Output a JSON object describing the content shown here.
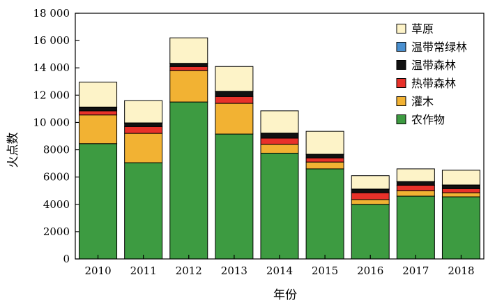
{
  "chart_data": {
    "type": "bar",
    "stacked": true,
    "categories": [
      "2010",
      "2011",
      "2012",
      "2013",
      "2014",
      "2015",
      "2016",
      "2017",
      "2018"
    ],
    "xlabel": "年份",
    "ylabel": "火点数",
    "ylim": [
      0,
      18000
    ],
    "yticks": [
      0,
      2000,
      4000,
      6000,
      8000,
      10000,
      12000,
      14000,
      16000,
      18000
    ],
    "ytick_labels": [
      "0",
      "2000",
      "4000",
      "6000",
      "8000",
      "10 000",
      "12 000",
      "14 000",
      "16 000",
      "18 000"
    ],
    "grid": false,
    "legend_position": "top-right",
    "series": [
      {
        "name": "农作物",
        "color": "#3d9b41",
        "values": [
          8450,
          7050,
          11500,
          9150,
          7750,
          6600,
          4000,
          4600,
          4550
        ]
      },
      {
        "name": "灌木",
        "color": "#f2b233",
        "values": [
          2100,
          2150,
          2300,
          2250,
          650,
          500,
          350,
          400,
          300
        ]
      },
      {
        "name": "热带森林",
        "color": "#e8312a",
        "values": [
          300,
          500,
          300,
          500,
          450,
          300,
          500,
          400,
          300
        ]
      },
      {
        "name": "温带森林",
        "color": "#111111",
        "values": [
          250,
          250,
          200,
          350,
          350,
          250,
          250,
          250,
          250
        ]
      },
      {
        "name": "温带常绿林",
        "color": "#4a90d0",
        "values": [
          30,
          20,
          30,
          30,
          20,
          20,
          20,
          20,
          20
        ]
      },
      {
        "name": "草原",
        "color": "#fdf3c8",
        "values": [
          1820,
          1630,
          1870,
          1820,
          1630,
          1680,
          980,
          930,
          1080
        ]
      }
    ],
    "legend_order": [
      "草原",
      "温带常绿林",
      "温带森林",
      "热带森林",
      "灌木",
      "农作物"
    ]
  }
}
